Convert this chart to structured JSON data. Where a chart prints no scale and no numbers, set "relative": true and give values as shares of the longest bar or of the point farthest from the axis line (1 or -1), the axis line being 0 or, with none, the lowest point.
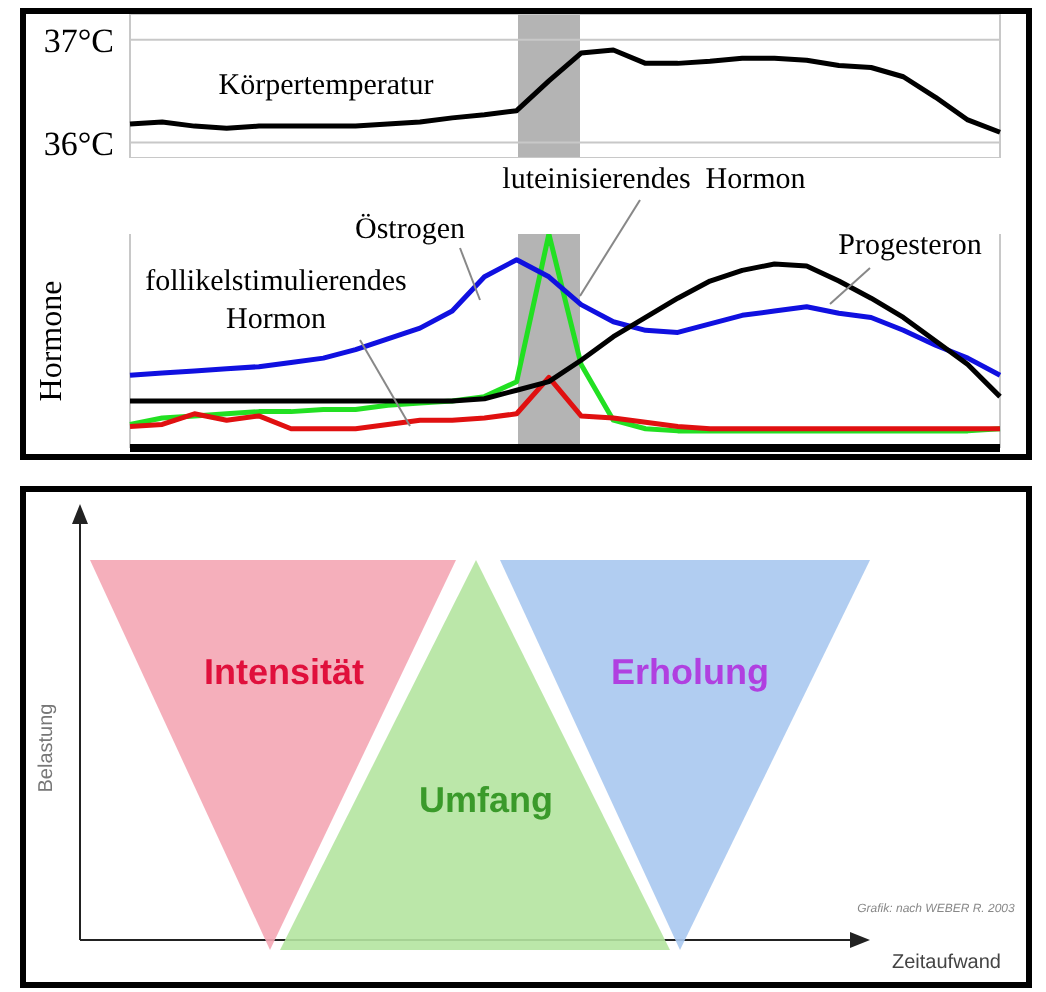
{
  "chart_data": [
    {
      "type": "line",
      "categories": [
        null,
        null,
        null,
        null,
        null,
        null,
        null,
        null,
        null,
        null,
        null,
        null,
        null,
        null,
        null,
        null,
        null,
        null,
        null,
        null,
        null,
        null,
        null,
        null,
        null,
        null,
        null,
        null
      ],
      "ylim": [
        35.85,
        37.25
      ],
      "yticks": [
        {
          "value": 36,
          "label": "36°C"
        },
        {
          "value": 37,
          "label": "37°C"
        }
      ],
      "grid": true,
      "tick_labels": "y",
      "series": [
        {
          "name": "Körpertemperatur",
          "color": "#000000",
          "values": [
            36.18,
            36.2,
            36.16,
            36.14,
            36.16,
            36.16,
            36.16,
            36.16,
            36.18,
            36.2,
            36.24,
            36.27,
            36.31,
            36.6,
            36.87,
            36.9,
            36.77,
            36.77,
            36.79,
            36.82,
            36.82,
            36.8,
            36.75,
            36.73,
            36.64,
            36.44,
            36.22,
            36.1
          ]
        }
      ]
    },
    {
      "type": "line",
      "relative": true,
      "ylabel": "Hormone",
      "categories": [
        null,
        null,
        null,
        null,
        null,
        null,
        null,
        null,
        null,
        null,
        null,
        null,
        null,
        null,
        null,
        null,
        null,
        null,
        null,
        null,
        null,
        null,
        null,
        null,
        null,
        null,
        null,
        null
      ],
      "grid": "x",
      "tick_labels": false,
      "series": [
        {
          "name": "luteinisierendes  Hormon",
          "color": "#22e022",
          "values": [
            0.11,
            0.14,
            0.15,
            0.16,
            0.17,
            0.17,
            0.18,
            0.18,
            0.2,
            0.21,
            0.22,
            0.24,
            0.31,
            1,
            0.39,
            0.13,
            0.09,
            0.08,
            0.08,
            0.08,
            0.08,
            0.08,
            0.08,
            0.08,
            0.08,
            0.08,
            0.08,
            0.09
          ]
        },
        {
          "name": "Östrogen",
          "color": "#1010e0",
          "values": [
            0.34,
            0.35,
            0.36,
            0.37,
            0.38,
            0.4,
            0.42,
            0.46,
            0.51,
            0.56,
            0.64,
            0.8,
            0.88,
            0.8,
            0.67,
            0.59,
            0.55,
            0.54,
            0.58,
            0.62,
            0.64,
            0.66,
            0.63,
            0.61,
            0.55,
            0.48,
            0.42,
            0.34
          ]
        },
        {
          "name": "follikelstimulierendes Hormon",
          "color": "#e01010",
          "values": [
            0.1,
            0.11,
            0.16,
            0.13,
            0.15,
            0.09,
            0.09,
            0.09,
            0.11,
            0.13,
            0.13,
            0.14,
            0.16,
            0.33,
            0.15,
            0.14,
            0.12,
            0.1,
            0.09,
            0.09,
            0.09,
            0.09,
            0.09,
            0.09,
            0.09,
            0.09,
            0.09,
            0.09
          ]
        },
        {
          "name": "Progesteron",
          "color": "#000000",
          "values": [
            0.22,
            0.22,
            0.22,
            0.22,
            0.22,
            0.22,
            0.22,
            0.22,
            0.22,
            0.22,
            0.22,
            0.23,
            0.27,
            0.31,
            0.41,
            0.52,
            0.61,
            0.7,
            0.78,
            0.83,
            0.86,
            0.85,
            0.78,
            0.7,
            0.61,
            0.5,
            0.39,
            0.24
          ]
        }
      ]
    },
    {
      "type": "other",
      "xlabel": "Zeitaufwand",
      "ylabel": "Belastung",
      "categories": [
        "Intensität",
        "Umfang",
        "Erholung"
      ],
      "colors": [
        "#f4a6b4",
        "#b4e4a0",
        "#a8c8f0"
      ],
      "annotations": [
        "Grafik: nach WEBER R. 2003"
      ]
    }
  ]
}
